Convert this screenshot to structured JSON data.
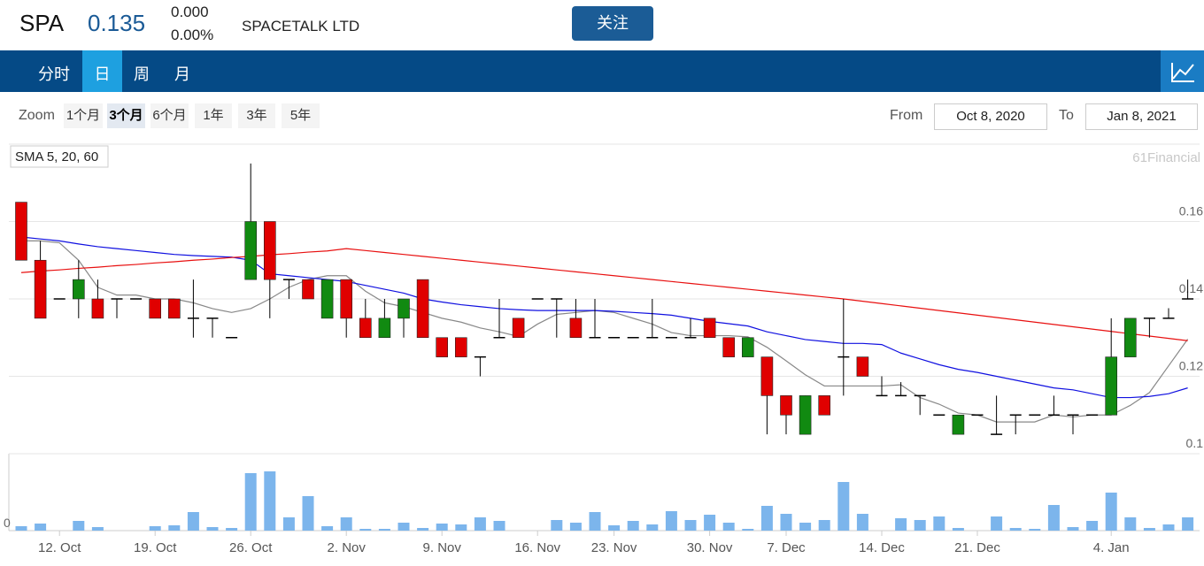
{
  "header": {
    "symbol": "SPA",
    "price": "0.135",
    "change": "0.000",
    "change_pct": "0.00%",
    "name": "SPACETALK LTD",
    "follow_button": "关注"
  },
  "nav": {
    "tabs": [
      "分时",
      "日",
      "周",
      "月"
    ]
  },
  "toolbar": {
    "zoom_label": "Zoom",
    "zoom_buttons": [
      "1个月",
      "3个月",
      "6个月",
      "1年",
      "3年",
      "5年"
    ],
    "from_label": "From",
    "from_date": "Oct 8, 2020",
    "to_label": "To",
    "to_date": "Jan 8, 2021"
  },
  "chart_data": {
    "type": "candlestick",
    "legend": "SMA 5, 20, 60",
    "credit": "61Financial",
    "categories": [
      null,
      null,
      "12. Oct",
      null,
      null,
      null,
      null,
      "19. Oct",
      null,
      null,
      null,
      null,
      "26. Oct",
      null,
      null,
      null,
      null,
      "2. Nov",
      null,
      null,
      null,
      null,
      "9. Nov",
      null,
      null,
      null,
      null,
      "16. Nov",
      null,
      null,
      null,
      "23. Nov",
      null,
      null,
      null,
      null,
      "30. Nov",
      null,
      null,
      null,
      "7. Dec",
      null,
      null,
      null,
      null,
      "14. Dec",
      null,
      null,
      null,
      null,
      "21. Dec",
      null,
      null,
      null,
      null,
      null,
      null,
      "4. Jan",
      null,
      null,
      null,
      null
    ],
    "open": [
      0.165,
      0.15,
      0.14,
      0.14,
      0.14,
      0.14,
      0.14,
      0.14,
      0.14,
      0.135,
      0.135,
      0.13,
      0.145,
      0.16,
      0.145,
      0.145,
      0.135,
      0.145,
      0.135,
      0.13,
      0.135,
      0.145,
      0.13,
      0.13,
      0.125,
      0.13,
      0.135,
      0.14,
      0.14,
      0.135,
      0.13,
      0.13,
      0.13,
      0.13,
      0.13,
      0.13,
      0.135,
      0.13,
      0.125,
      0.125,
      0.115,
      0.105,
      0.115,
      0.125,
      0.125,
      0.115,
      0.115,
      0.115,
      0.11,
      0.105,
      0.11,
      0.105,
      0.11,
      0.11,
      0.11,
      0.11,
      0.11,
      0.11,
      0.125,
      0.135,
      0.135,
      0.14
    ],
    "high": [
      0.165,
      0.155,
      0.14,
      0.15,
      0.145,
      0.14,
      0.14,
      0.14,
      0.14,
      0.145,
      0.135,
      0.13,
      0.175,
      0.16,
      0.145,
      0.145,
      0.145,
      0.145,
      0.14,
      0.14,
      0.14,
      0.145,
      0.13,
      0.13,
      0.125,
      0.14,
      0.135,
      0.14,
      0.14,
      0.14,
      0.14,
      0.13,
      0.13,
      0.14,
      0.13,
      0.135,
      0.135,
      0.13,
      0.13,
      0.125,
      0.115,
      0.115,
      0.115,
      0.14,
      0.125,
      0.12,
      0.1185,
      0.115,
      0.11,
      0.11,
      0.11,
      0.115,
      0.11,
      0.11,
      0.115,
      0.11,
      0.11,
      0.135,
      0.135,
      0.135,
      0.1376,
      0.145
    ],
    "low": [
      0.15,
      0.135,
      0.14,
      0.135,
      0.135,
      0.135,
      0.14,
      0.135,
      0.135,
      0.13,
      0.13,
      0.13,
      0.145,
      0.135,
      0.14,
      0.14,
      0.135,
      0.13,
      0.13,
      0.13,
      0.13,
      0.13,
      0.125,
      0.125,
      0.12,
      0.13,
      0.13,
      0.14,
      0.13,
      0.13,
      0.13,
      0.13,
      0.13,
      0.13,
      0.13,
      0.13,
      0.13,
      0.125,
      0.125,
      0.105,
      0.105,
      0.105,
      0.11,
      0.115,
      0.12,
      0.115,
      0.115,
      0.11,
      0.11,
      0.105,
      0.11,
      0.105,
      0.105,
      0.11,
      0.11,
      0.105,
      0.11,
      0.11,
      0.125,
      0.13,
      0.135,
      0.14
    ],
    "close": [
      0.15,
      0.135,
      0.14,
      0.145,
      0.135,
      0.14,
      0.14,
      0.135,
      0.135,
      0.135,
      0.135,
      0.13,
      0.16,
      0.145,
      0.145,
      0.14,
      0.145,
      0.135,
      0.13,
      0.135,
      0.14,
      0.13,
      0.125,
      0.125,
      0.125,
      0.13,
      0.13,
      0.14,
      0.14,
      0.13,
      0.13,
      0.13,
      0.13,
      0.13,
      0.13,
      0.13,
      0.13,
      0.125,
      0.13,
      0.115,
      0.11,
      0.115,
      0.11,
      0.125,
      0.12,
      0.115,
      0.115,
      0.115,
      0.11,
      0.11,
      0.11,
      0.105,
      0.11,
      0.11,
      0.11,
      0.11,
      0.11,
      0.125,
      0.135,
      0.135,
      0.135,
      0.14
    ],
    "up_color": "#118a11",
    "down_color": "#e00000",
    "flat_color": "#000000",
    "lines": [
      {
        "color": "#888888",
        "values": [
          0.155,
          0.155,
          0.1545,
          0.15,
          0.143,
          0.141,
          0.141,
          0.14,
          0.14,
          0.139,
          0.1375,
          0.1365,
          0.1375,
          0.14,
          0.143,
          0.145,
          0.146,
          0.146,
          0.142,
          0.139,
          0.138,
          0.1365,
          0.135,
          0.134,
          0.1325,
          0.1315,
          0.1303,
          0.1335,
          0.136,
          0.1365,
          0.137,
          0.1365,
          0.135,
          0.1335,
          0.1313,
          0.1305,
          0.1305,
          0.1305,
          0.1302,
          0.1275,
          0.124,
          0.1204,
          0.1175,
          0.1175,
          0.1175,
          0.1175,
          0.1178,
          0.1145,
          0.1128,
          0.1105,
          0.11,
          0.1082,
          0.1082,
          0.1082,
          0.11,
          0.1095,
          0.11,
          0.11,
          0.1125,
          0.1158,
          0.1227,
          0.1296
        ]
      },
      {
        "color": "#1010e0",
        "values": [
          0.156,
          0.1555,
          0.155,
          0.1542,
          0.1535,
          0.153,
          0.1525,
          0.152,
          0.1515,
          0.1512,
          0.151,
          0.1508,
          0.15,
          0.1465,
          0.146,
          0.1455,
          0.145,
          0.1445,
          0.1435,
          0.1425,
          0.1415,
          0.14,
          0.1392,
          0.1385,
          0.138,
          0.1375,
          0.1372,
          0.137,
          0.137,
          0.137,
          0.137,
          0.1368,
          0.1365,
          0.1362,
          0.1358,
          0.135,
          0.1342,
          0.1336,
          0.133,
          0.1315,
          0.1305,
          0.1295,
          0.129,
          0.1285,
          0.1285,
          0.1282,
          0.126,
          0.1245,
          0.123,
          0.1218,
          0.121,
          0.12,
          0.119,
          0.118,
          0.117,
          0.1165,
          0.1155,
          0.1145,
          0.1145,
          0.1148,
          0.1155,
          0.117
        ]
      },
      {
        "color": "#e81010",
        "values": [
          0.1468,
          0.1472,
          0.1475,
          0.1479,
          0.1482,
          0.1486,
          0.1489,
          0.1493,
          0.1496,
          0.15,
          0.1503,
          0.1507,
          0.151,
          0.1514,
          0.1517,
          0.1521,
          0.1524,
          0.153,
          0.1525,
          0.152,
          0.1515,
          0.151,
          0.1505,
          0.15,
          0.1495,
          0.149,
          0.1485,
          0.148,
          0.1475,
          0.147,
          0.1465,
          0.146,
          0.1455,
          0.145,
          0.1445,
          0.144,
          0.1435,
          0.143,
          0.1425,
          0.142,
          0.1415,
          0.141,
          0.1405,
          0.14,
          0.1394,
          0.1388,
          0.1382,
          0.1376,
          0.137,
          0.1364,
          0.1358,
          0.1352,
          0.1346,
          0.134,
          0.1334,
          0.1328,
          0.1322,
          0.1316,
          0.131,
          0.1304,
          0.1298,
          0.1292
        ]
      }
    ],
    "ylim": [
      0.1,
      0.18
    ],
    "yticks": [
      0.1,
      0.12,
      0.14,
      0.16
    ],
    "grid": true,
    "volume": {
      "color": "#7cb5ec",
      "ylim": [
        0,
        87
      ],
      "yticks": [
        0
      ],
      "values": [
        5,
        8,
        0,
        11,
        4,
        0,
        0,
        5,
        6,
        21,
        4,
        3,
        65,
        67,
        15,
        39,
        5,
        15,
        2,
        2,
        9,
        3,
        8,
        7,
        15,
        11,
        0,
        0,
        12,
        9,
        21,
        6,
        11,
        7,
        22,
        12,
        18,
        9,
        2,
        28,
        19,
        9,
        12,
        55,
        19,
        0,
        14,
        12,
        16,
        3,
        0,
        16,
        3,
        2,
        29,
        4,
        11,
        43,
        15,
        3,
        7,
        15
      ]
    }
  }
}
